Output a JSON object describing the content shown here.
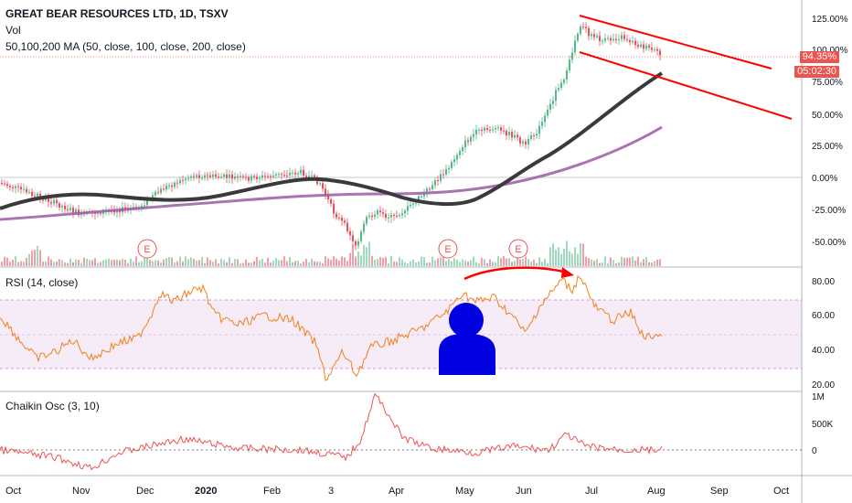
{
  "header": {
    "symbol_line": "GREAT BEAR RESOURCES LTD, 1D, TSXV",
    "vol_label": "Vol",
    "ma_label": "50,100,200 MA (50, close, 100, close, 200, close)"
  },
  "price_axis": {
    "ticks": [
      "125.00%",
      "100.00%",
      "75.00%",
      "50.00%",
      "25.00%",
      "0.00%",
      "-25.00%",
      "-50.00%"
    ],
    "last_tag": "94.35%",
    "timer_tag": "05:02:30"
  },
  "rsi_pane": {
    "title": "RSI (14, close)",
    "ticks": [
      "80.00",
      "60.00",
      "40.00",
      "20.00"
    ]
  },
  "chaikin_pane": {
    "title": "Chaikin Osc (3, 10)",
    "ticks": [
      "1M",
      "500K",
      "0"
    ]
  },
  "time_axis": {
    "labels": [
      "Oct",
      "Nov",
      "Dec",
      "2020",
      "Feb",
      "3",
      "Apr",
      "May",
      "Jun",
      "Jul",
      "Aug",
      "Sep",
      "Oct"
    ]
  },
  "earnings_markers": [
    "E",
    "E",
    "E"
  ],
  "colors": {
    "up_candle": "#53b987",
    "down_candle": "#eb4d5c",
    "ma_long": "#9b5ba5",
    "ma_mid": "#3a3a3a",
    "channel": "#ff0000",
    "rsi": "#f57f17",
    "rsi_band": "#9c27b0",
    "last_tag_bg": "#ef5350"
  },
  "icons": {
    "avatar": "user-avatar-icon",
    "arrow": "curved-arrow-annotation"
  }
}
